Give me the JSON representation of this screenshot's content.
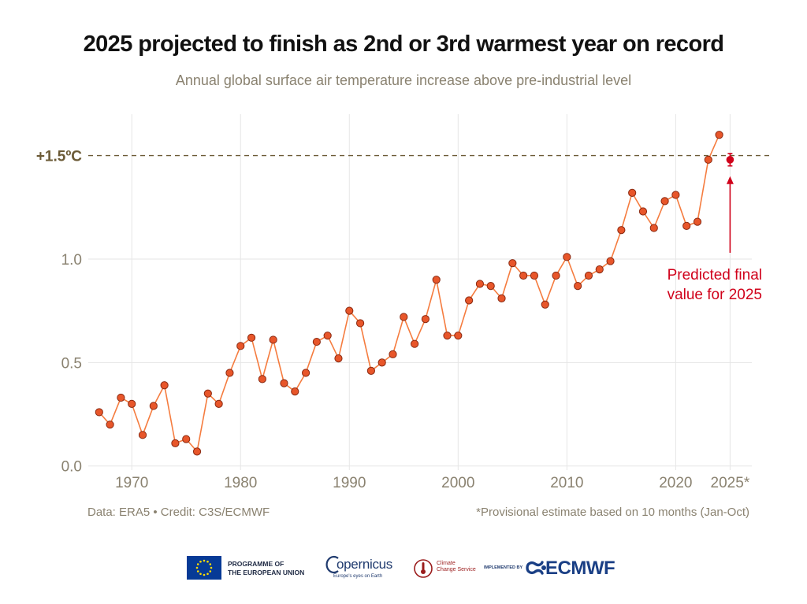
{
  "title": "2025 projected to finish as 2nd or 3rd warmest year on record",
  "subtitle": "Annual global surface air temperature increase above pre-industrial level",
  "chart_data": {
    "type": "line",
    "x_axis": {
      "min": 1966,
      "max": 2027,
      "ticks": [
        1970,
        1980,
        1990,
        2000,
        2010,
        2020
      ],
      "extra_tick_label": "2025*",
      "extra_tick_value": 2025
    },
    "y_axis": {
      "min": -0.02,
      "max": 1.7,
      "ticks": [
        0.0,
        0.5,
        1.0
      ],
      "tick_labels": [
        "0.0",
        "0.5",
        "1.0"
      ]
    },
    "grid": true,
    "reference_line": {
      "value": 1.5,
      "label": "+1.5ºC",
      "style": "dashed"
    },
    "series": [
      {
        "color": "#f57c3f",
        "marker_color": "#e8562a",
        "x": [
          1967,
          1968,
          1969,
          1970,
          1971,
          1972,
          1973,
          1974,
          1975,
          1976,
          1977,
          1978,
          1979,
          1980,
          1981,
          1982,
          1983,
          1984,
          1985,
          1986,
          1987,
          1988,
          1989,
          1990,
          1991,
          1992,
          1993,
          1994,
          1995,
          1996,
          1997,
          1998,
          1999,
          2000,
          2001,
          2002,
          2003,
          2004,
          2005,
          2006,
          2007,
          2008,
          2009,
          2010,
          2011,
          2012,
          2013,
          2014,
          2015,
          2016,
          2017,
          2018,
          2019,
          2020,
          2021,
          2022,
          2023,
          2024
        ],
        "y": [
          0.26,
          0.2,
          0.33,
          0.3,
          0.15,
          0.29,
          0.39,
          0.11,
          0.13,
          0.07,
          0.35,
          0.3,
          0.45,
          0.58,
          0.62,
          0.42,
          0.61,
          0.4,
          0.36,
          0.45,
          0.6,
          0.63,
          0.52,
          0.75,
          0.69,
          0.46,
          0.5,
          0.54,
          0.72,
          0.59,
          0.71,
          0.9,
          0.63,
          0.63,
          0.8,
          0.88,
          0.87,
          0.81,
          0.98,
          0.92,
          0.92,
          0.78,
          0.92,
          1.01,
          0.87,
          0.92,
          0.95,
          0.99,
          1.14,
          1.32,
          1.23,
          1.15,
          1.28,
          1.31,
          1.16,
          1.18,
          1.48,
          1.6
        ]
      }
    ],
    "projection": {
      "x": 2025,
      "y": 1.48,
      "error_low": 1.45,
      "error_high": 1.51,
      "color": "#d0021b"
    },
    "annotation": {
      "line1": "Predicted final",
      "line2": "value for 2025",
      "color": "#d0021b"
    }
  },
  "footer": {
    "source": "Data: ERA5 • Credit: C3S/ECMWF",
    "note": "*Provisional estimate based on 10 months (Jan-Oct)"
  },
  "logos": {
    "eu_line1": "PROGRAMME OF",
    "eu_line2": "THE EUROPEAN UNION",
    "copernicus_word": "opernicus",
    "copernicus_tag": "Europe's eyes on Earth",
    "c3s_line1": "Climate",
    "c3s_line2": "Change Service",
    "ecmwf_impl": "IMPLEMENTED BY",
    "ecmwf_word": "ECMWF"
  },
  "colors": {
    "axis_text": "#8a8270",
    "ref_line": "#6b5a36",
    "grid": "#e6e6e6",
    "title": "#111111"
  }
}
